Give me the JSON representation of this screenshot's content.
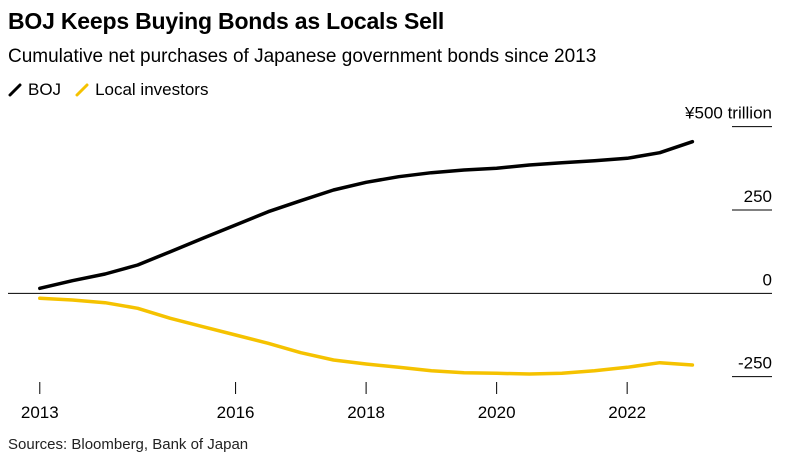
{
  "title": "BOJ Keeps Buying Bonds as Locals Sell",
  "subtitle": "Cumulative net purchases of Japanese government bonds since 2013",
  "source": "Sources: Bloomberg, Bank of Japan",
  "colors": {
    "boj": "#000000",
    "local": "#f5c200",
    "zero_line": "#000000",
    "grid": "#000000"
  },
  "chart_data": {
    "type": "line",
    "title": "BOJ Keeps Buying Bonds as Locals Sell",
    "subtitle": "Cumulative net purchases of Japanese government bonds since 2013",
    "ylabel": "",
    "xlabel": "",
    "ylim": [
      -290,
      520
    ],
    "xlim": [
      2012.85,
      2023.3
    ],
    "y_ticks": [
      {
        "value": 500,
        "label": "¥500 trillion"
      },
      {
        "value": 250,
        "label": "250"
      },
      {
        "value": 0,
        "label": "0"
      },
      {
        "value": -250,
        "label": "-250"
      }
    ],
    "x_ticks": [
      {
        "value": 2013,
        "label": "2013"
      },
      {
        "value": 2016,
        "label": "2016"
      },
      {
        "value": 2018,
        "label": "2018"
      },
      {
        "value": 2020,
        "label": "2020"
      },
      {
        "value": 2022,
        "label": "2022"
      }
    ],
    "legend_position": "top-left",
    "series": [
      {
        "name": "BOJ",
        "color": "#000000",
        "x": [
          2013.0,
          2013.5,
          2014.0,
          2014.5,
          2015.0,
          2015.5,
          2016.0,
          2016.5,
          2017.0,
          2017.5,
          2018.0,
          2018.5,
          2019.0,
          2019.5,
          2020.0,
          2020.5,
          2021.0,
          2021.5,
          2022.0,
          2022.5,
          2023.0
        ],
        "y": [
          15,
          38,
          58,
          85,
          125,
          165,
          205,
          245,
          278,
          310,
          333,
          350,
          362,
          370,
          375,
          385,
          392,
          398,
          405,
          422,
          455
        ]
      },
      {
        "name": "Local investors",
        "color": "#f5c200",
        "x": [
          2013.0,
          2013.5,
          2014.0,
          2014.5,
          2015.0,
          2015.5,
          2016.0,
          2016.5,
          2017.0,
          2017.5,
          2018.0,
          2018.5,
          2019.0,
          2019.5,
          2020.0,
          2020.5,
          2021.0,
          2021.5,
          2022.0,
          2022.5,
          2023.0
        ],
        "y": [
          -15,
          -20,
          -28,
          -45,
          -75,
          -100,
          -125,
          -150,
          -178,
          -200,
          -212,
          -222,
          -232,
          -238,
          -240,
          -242,
          -240,
          -232,
          -222,
          -208,
          -215
        ]
      }
    ]
  }
}
